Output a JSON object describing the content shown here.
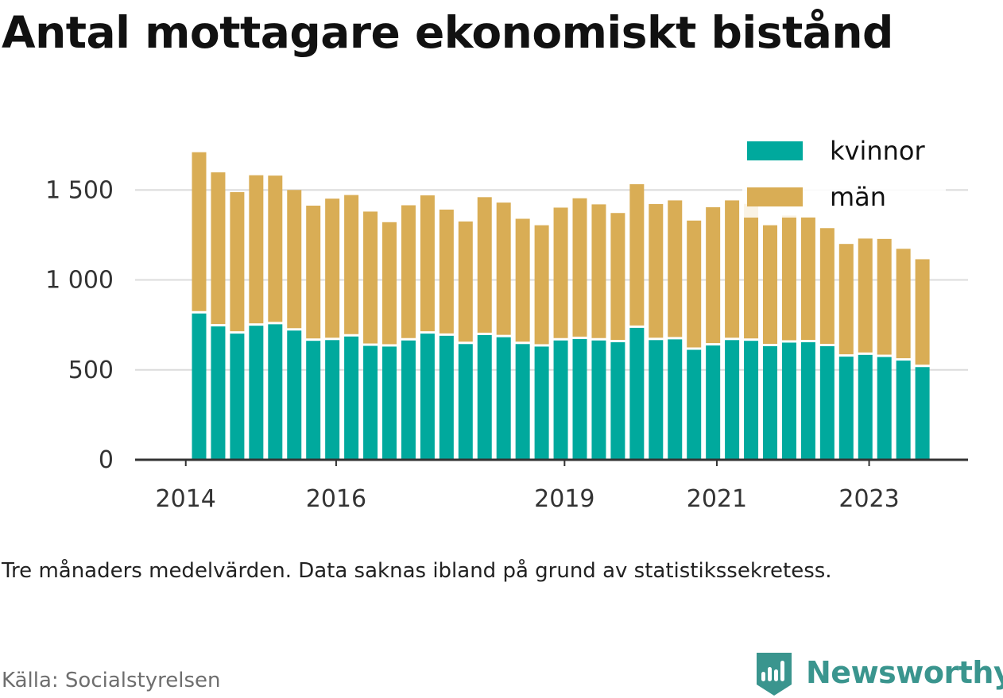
{
  "chart_data": {
    "type": "bar",
    "stacked": true,
    "title": "Antal mottagare ekonomiskt bistånd",
    "x": [
      "2014-Q2",
      "2014-Q3",
      "2014-Q4",
      "2015-Q1",
      "2015-Q2",
      "2015-Q3",
      "2015-Q4",
      "2016-Q1",
      "2016-Q2",
      "2016-Q3",
      "2016-Q4",
      "2017-Q1",
      "2017-Q2",
      "2017-Q3",
      "2017-Q4",
      "2018-Q1",
      "2018-Q2",
      "2018-Q3",
      "2018-Q4",
      "2019-Q1",
      "2019-Q2",
      "2019-Q3",
      "2019-Q4",
      "2020-Q1",
      "2020-Q2",
      "2020-Q3",
      "2020-Q4",
      "2021-Q1",
      "2021-Q2",
      "2021-Q3",
      "2021-Q4",
      "2022-Q1",
      "2022-Q2",
      "2022-Q3",
      "2022-Q4",
      "2023-Q1",
      "2023-Q2",
      "2023-Q3",
      "2023-Q4"
    ],
    "x_ticks": [
      {
        "label": "2014",
        "index": -0.7
      },
      {
        "label": "2016",
        "index": 7.2
      },
      {
        "label": "2019",
        "index": 19.2
      },
      {
        "label": "2021",
        "index": 27.2
      },
      {
        "label": "2023",
        "index": 35.2
      }
    ],
    "series": [
      {
        "name": "kvinnor",
        "color": "#00a99d",
        "values": [
          820,
          748,
          708,
          752,
          760,
          725,
          668,
          672,
          692,
          640,
          636,
          670,
          708,
          696,
          650,
          700,
          688,
          650,
          636,
          670,
          678,
          670,
          660,
          740,
          672,
          676,
          618,
          642,
          672,
          668,
          638,
          658,
          660,
          638,
          580,
          590,
          578,
          558,
          522
        ]
      },
      {
        "name": "män",
        "color": "#d9ad55",
        "values": [
          890,
          850,
          780,
          830,
          820,
          775,
          745,
          780,
          780,
          740,
          685,
          745,
          762,
          695,
          675,
          760,
          742,
          690,
          668,
          732,
          776,
          750,
          712,
          792,
          750,
          766,
          712,
          762,
          770,
          755,
          666,
          700,
          690,
          650,
          620,
          640,
          650,
          615,
          593
        ]
      }
    ],
    "yticks": [
      0,
      500,
      1000,
      1500
    ],
    "ytick_labels": [
      "0",
      "500",
      "1 000",
      "1 500"
    ],
    "ylim": [
      0,
      1800
    ],
    "grid": true,
    "legend": "top-right"
  },
  "note": "Tre månaders medelvärden. Data saknas ibland på grund av statistikssekretess.",
  "source": "Källa: Socialstyrelsen",
  "brand": {
    "name": "Newsworthy",
    "color": "#3a958e"
  }
}
